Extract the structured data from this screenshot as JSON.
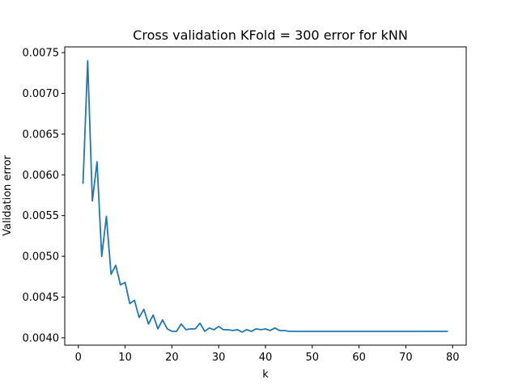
{
  "chart_data": {
    "type": "line",
    "title": "Cross validation KFold = 300 error for kNN",
    "xlabel": "k",
    "ylabel": "Validation error",
    "xlim": [
      -2.9,
      82.9
    ],
    "ylim": [
      0.00391,
      0.00757
    ],
    "xticks": [
      0,
      10,
      20,
      30,
      40,
      50,
      60,
      70,
      80
    ],
    "yticks": [
      0.004,
      0.0045,
      0.005,
      0.0055,
      0.006,
      0.0065,
      0.007,
      0.0075
    ],
    "ytick_labels": [
      "0.0040",
      "0.0045",
      "0.0050",
      "0.0055",
      "0.0060",
      "0.0065",
      "0.0070",
      "0.0075"
    ],
    "grid": false,
    "color": "#1f77b4",
    "series": [
      {
        "x": [
          1,
          2,
          3,
          4,
          5,
          6,
          7,
          8,
          9,
          10,
          11,
          12,
          13,
          14,
          15,
          16,
          17,
          18,
          19,
          20,
          21,
          22,
          23,
          24,
          25,
          26,
          27,
          28,
          29,
          30,
          31,
          32,
          33,
          34,
          35,
          36,
          37,
          38,
          39,
          40,
          41,
          42,
          43,
          44,
          45,
          46,
          47,
          48,
          49,
          50,
          51,
          52,
          53,
          54,
          55,
          56,
          57,
          58,
          59,
          60,
          61,
          62,
          63,
          64,
          65,
          66,
          67,
          68,
          69,
          70,
          71,
          72,
          73,
          74,
          75,
          76,
          77,
          78,
          79
        ],
        "values": [
          0.00589,
          0.0074,
          0.00568,
          0.00616,
          0.005,
          0.00549,
          0.00478,
          0.00489,
          0.00465,
          0.00468,
          0.00442,
          0.00446,
          0.00425,
          0.00435,
          0.00417,
          0.00428,
          0.00411,
          0.00422,
          0.00411,
          0.00408,
          0.00408,
          0.00417,
          0.0041,
          0.00411,
          0.00411,
          0.00418,
          0.00408,
          0.00412,
          0.0041,
          0.00414,
          0.0041,
          0.0041,
          0.00409,
          0.0041,
          0.00407,
          0.0041,
          0.00408,
          0.00411,
          0.0041,
          0.00411,
          0.00409,
          0.00412,
          0.00409,
          0.00409,
          0.00408,
          0.00408,
          0.00408,
          0.00408,
          0.00408,
          0.00408,
          0.00408,
          0.00408,
          0.00408,
          0.00408,
          0.00408,
          0.00408,
          0.00408,
          0.00408,
          0.00408,
          0.00408,
          0.00408,
          0.00408,
          0.00408,
          0.00408,
          0.00408,
          0.00408,
          0.00408,
          0.00408,
          0.00408,
          0.00408,
          0.00408,
          0.00408,
          0.00408,
          0.00408,
          0.00408,
          0.00408,
          0.00408,
          0.00408,
          0.00408
        ]
      }
    ]
  }
}
